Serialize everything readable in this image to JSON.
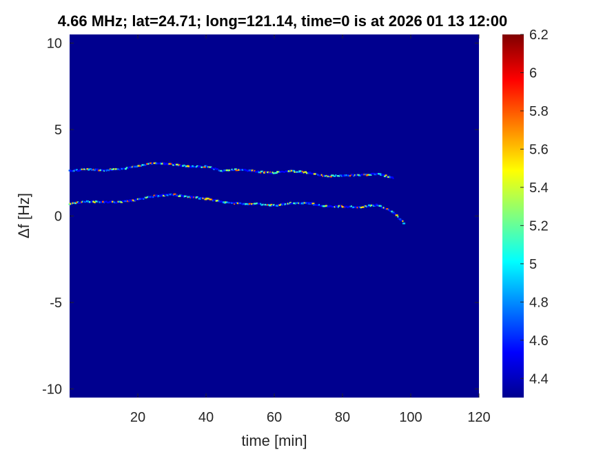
{
  "chart_data": {
    "type": "heatmap",
    "title": "4.66 MHz;  lat=24.71; long=121.14, time=0 is at 2026 01 13 12:00",
    "xlabel": "time [min]",
    "ylabel": "Δf [Hz]",
    "xlim": [
      0,
      120
    ],
    "ylim": [
      -10.5,
      10.5
    ],
    "xticks": [
      20,
      40,
      60,
      80,
      100,
      120
    ],
    "yticks": [
      10,
      5,
      0,
      -5,
      -10
    ],
    "colorbar": {
      "colormap": "jet",
      "clim": [
        4.3,
        6.2
      ],
      "ticks": [
        4.4,
        4.6,
        4.8,
        5,
        5.2,
        5.4,
        5.6,
        5.8,
        6,
        6.2
      ]
    },
    "background_value": 4.3,
    "grid": false,
    "traces": [
      {
        "name": "",
        "x": [
          0,
          5,
          10,
          15,
          20,
          25,
          30,
          35,
          40,
          45,
          50,
          55,
          60,
          65,
          70,
          75,
          80,
          85,
          90,
          95
        ],
        "y": [
          2.6,
          2.7,
          2.65,
          2.7,
          2.9,
          3.05,
          3.0,
          2.85,
          2.85,
          2.6,
          2.7,
          2.55,
          2.5,
          2.6,
          2.5,
          2.3,
          2.35,
          2.35,
          2.45,
          2.2
        ]
      },
      {
        "name": "",
        "x": [
          0,
          5,
          10,
          15,
          20,
          25,
          30,
          35,
          40,
          45,
          50,
          55,
          60,
          65,
          70,
          75,
          80,
          85,
          90,
          95,
          98
        ],
        "y": [
          0.7,
          0.85,
          0.8,
          0.8,
          0.95,
          1.15,
          1.25,
          1.1,
          1.0,
          0.8,
          0.7,
          0.7,
          0.6,
          0.75,
          0.75,
          0.55,
          0.55,
          0.5,
          0.65,
          0.2,
          -0.4
        ]
      }
    ]
  }
}
